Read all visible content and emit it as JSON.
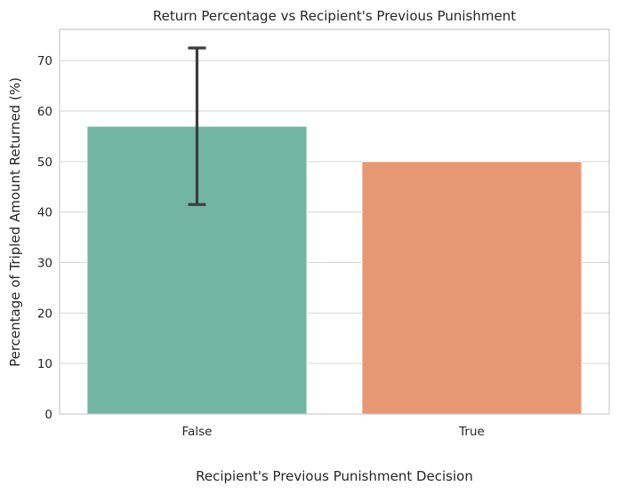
{
  "chart_data": {
    "type": "bar",
    "title": "Return Percentage vs Recipient's Previous Punishment",
    "xlabel": "Recipient's Previous Punishment Decision",
    "ylabel": "Percentage of Tripled Amount Returned (%)",
    "categories": [
      "False",
      "True"
    ],
    "values": [
      57.0,
      50.0
    ],
    "error_bars": [
      [
        41.5,
        72.5
      ],
      null
    ],
    "colors": [
      "#72b5a1",
      "#e89774"
    ],
    "error_color": "#3d3d3d",
    "ylim": [
      0,
      76.2
    ],
    "yticks": [
      "0",
      "10",
      "20",
      "30",
      "40",
      "50",
      "60",
      "70"
    ],
    "grid": true,
    "legend": "none"
  }
}
